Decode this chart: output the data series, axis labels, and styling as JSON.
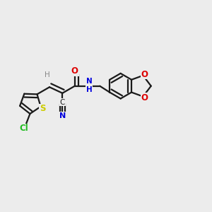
{
  "bg_color": "#ececec",
  "bond_color": "#1a1a1a",
  "bond_width": 1.6,
  "fig_w": 3.0,
  "fig_h": 3.0,
  "dpi": 100,
  "xlim": [
    0,
    1
  ],
  "ylim": [
    0,
    1
  ],
  "atom_labels": {
    "Cl": {
      "color": "#22bb22"
    },
    "S": {
      "color": "#cccc00"
    },
    "H": {
      "color": "#888888"
    },
    "C": {
      "color": "#1a1a1a"
    },
    "N": {
      "color": "#0000dd"
    },
    "O": {
      "color": "#dd0000"
    },
    "NH": {
      "color": "#0000dd"
    }
  }
}
